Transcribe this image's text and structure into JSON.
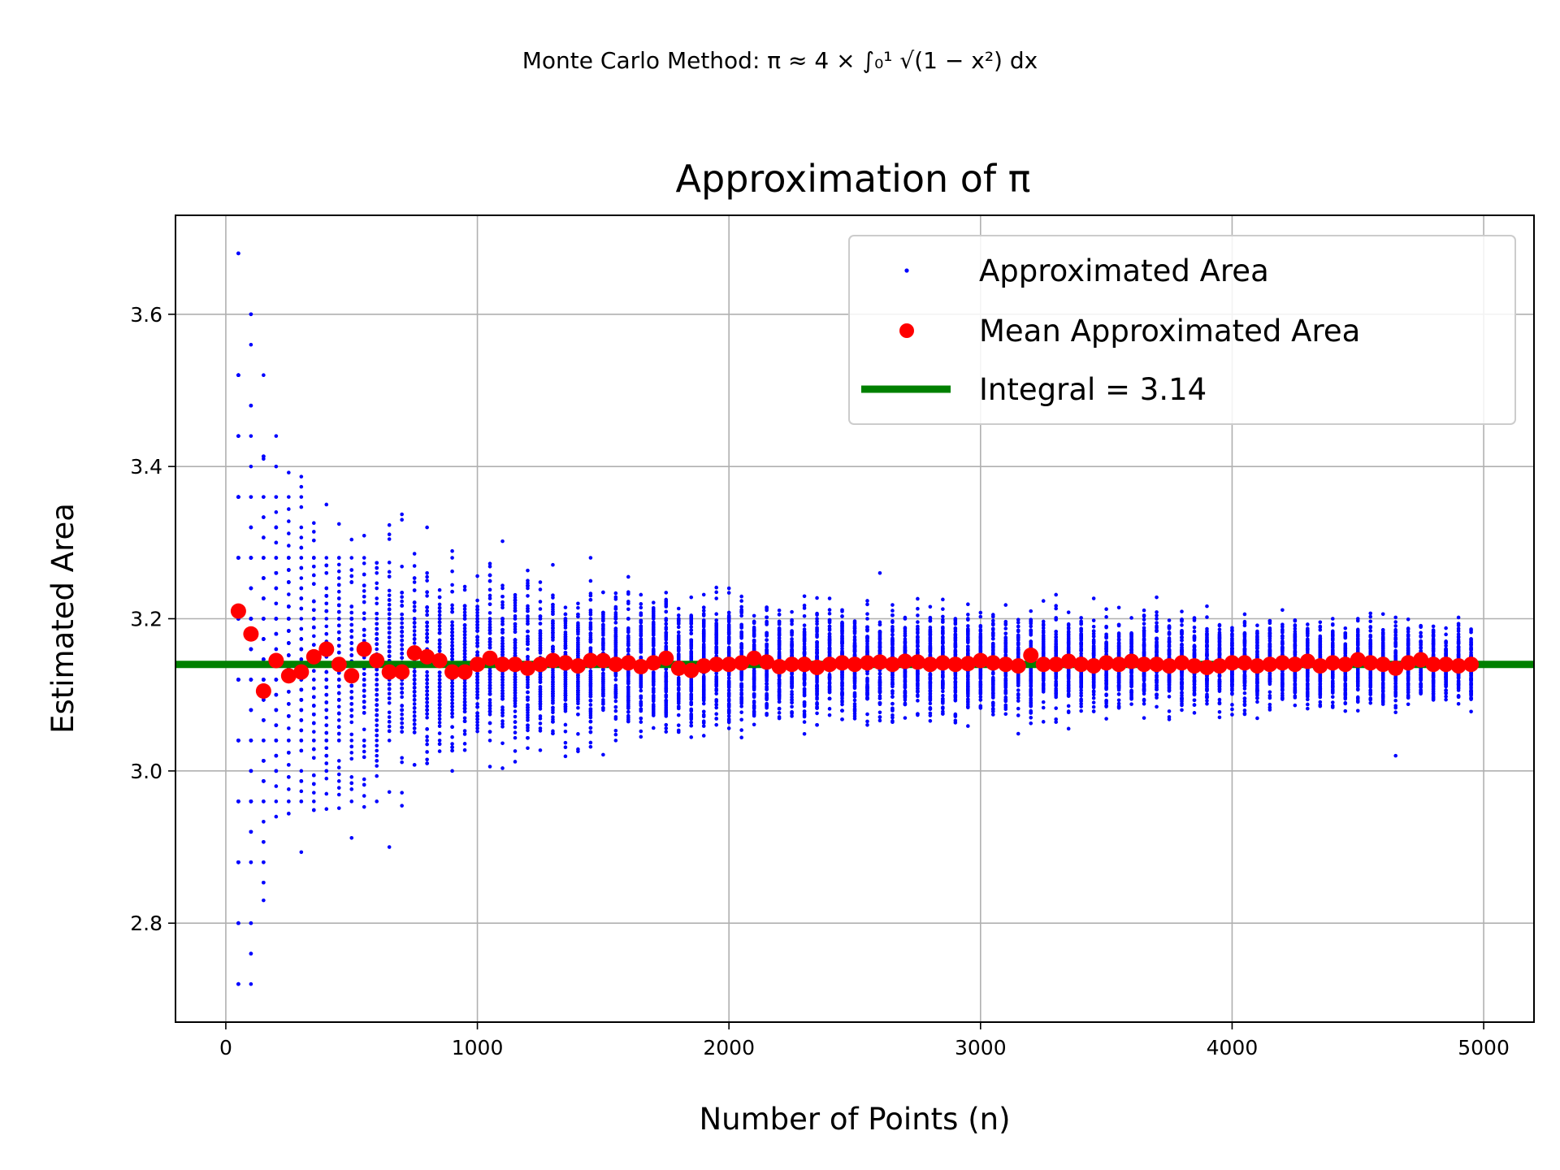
{
  "chart_data": {
    "type": "scatter",
    "suptitle": "Monte Carlo Method: π ≈ 4 × ∫₀¹ √(1 − x²) dx",
    "title": "Approximation of π",
    "xlabel": "Number of Points (n)",
    "ylabel": "Estimated Area",
    "xlim": [
      -200,
      5200
    ],
    "ylim": [
      2.67,
      3.73
    ],
    "xticks": [
      0,
      1000,
      2000,
      3000,
      4000,
      5000
    ],
    "yticks": [
      2.8,
      3.0,
      3.2,
      3.4,
      3.6
    ],
    "xtick_labels": [
      "0",
      "1000",
      "2000",
      "3000",
      "4000",
      "5000"
    ],
    "ytick_labels": [
      "2.8",
      "3.0",
      "3.2",
      "3.4",
      "3.6"
    ],
    "grid": true,
    "legend_position": "top-right",
    "sample_groups": {
      "n_values_start": 50,
      "n_values_step": 50,
      "n_values_end": 4950,
      "samples_per_n": 100,
      "note_range": "blue dots spread around the mean with spread shrinking as 1/sqrt(n)"
    },
    "series": [
      {
        "name": "Approximated Area",
        "kind": "scatter",
        "color": "#0000ff",
        "outliers": [
          {
            "x": 50,
            "y": 3.68
          },
          {
            "x": 50,
            "y": 3.52
          },
          {
            "x": 50,
            "y": 2.72
          },
          {
            "x": 100,
            "y": 3.6
          },
          {
            "x": 100,
            "y": 2.76
          },
          {
            "x": 150,
            "y": 3.41
          },
          {
            "x": 150,
            "y": 2.83
          },
          {
            "x": 650,
            "y": 2.9
          },
          {
            "x": 700,
            "y": 3.33
          },
          {
            "x": 1450,
            "y": 3.28
          },
          {
            "x": 2600,
            "y": 3.26
          },
          {
            "x": 4650,
            "y": 3.02
          }
        ]
      },
      {
        "name": "Mean Approximated Area",
        "kind": "scatter",
        "color": "#ff0000",
        "points": [
          {
            "x": 50,
            "y": 3.21
          },
          {
            "x": 100,
            "y": 3.18
          },
          {
            "x": 150,
            "y": 3.105
          },
          {
            "x": 200,
            "y": 3.145
          },
          {
            "x": 250,
            "y": 3.125
          },
          {
            "x": 300,
            "y": 3.13
          },
          {
            "x": 350,
            "y": 3.15
          },
          {
            "x": 400,
            "y": 3.16
          },
          {
            "x": 450,
            "y": 3.14
          },
          {
            "x": 500,
            "y": 3.125
          },
          {
            "x": 550,
            "y": 3.16
          },
          {
            "x": 600,
            "y": 3.145
          },
          {
            "x": 650,
            "y": 3.13
          },
          {
            "x": 700,
            "y": 3.13
          },
          {
            "x": 750,
            "y": 3.155
          },
          {
            "x": 800,
            "y": 3.15
          },
          {
            "x": 850,
            "y": 3.145
          },
          {
            "x": 900,
            "y": 3.13
          },
          {
            "x": 950,
            "y": 3.13
          },
          {
            "x": 1000,
            "y": 3.14
          },
          {
            "x": 1050,
            "y": 3.148
          },
          {
            "x": 1100,
            "y": 3.14
          },
          {
            "x": 1150,
            "y": 3.14
          },
          {
            "x": 1200,
            "y": 3.135
          },
          {
            "x": 1250,
            "y": 3.14
          },
          {
            "x": 1300,
            "y": 3.145
          },
          {
            "x": 1350,
            "y": 3.142
          },
          {
            "x": 1400,
            "y": 3.138
          },
          {
            "x": 1450,
            "y": 3.145
          },
          {
            "x": 1500,
            "y": 3.145
          },
          {
            "x": 1550,
            "y": 3.14
          },
          {
            "x": 1600,
            "y": 3.142
          },
          {
            "x": 1650,
            "y": 3.137
          },
          {
            "x": 1700,
            "y": 3.142
          },
          {
            "x": 1750,
            "y": 3.148
          },
          {
            "x": 1800,
            "y": 3.135
          },
          {
            "x": 1850,
            "y": 3.132
          },
          {
            "x": 1900,
            "y": 3.138
          },
          {
            "x": 1950,
            "y": 3.14
          },
          {
            "x": 2000,
            "y": 3.14
          },
          {
            "x": 2050,
            "y": 3.142
          },
          {
            "x": 2100,
            "y": 3.148
          },
          {
            "x": 2150,
            "y": 3.143
          },
          {
            "x": 2200,
            "y": 3.137
          },
          {
            "x": 2250,
            "y": 3.14
          },
          {
            "x": 2300,
            "y": 3.14
          },
          {
            "x": 2350,
            "y": 3.136
          },
          {
            "x": 2400,
            "y": 3.14
          },
          {
            "x": 2450,
            "y": 3.142
          },
          {
            "x": 2500,
            "y": 3.14
          },
          {
            "x": 2550,
            "y": 3.142
          },
          {
            "x": 2600,
            "y": 3.143
          },
          {
            "x": 2650,
            "y": 3.14
          },
          {
            "x": 2700,
            "y": 3.144
          },
          {
            "x": 2750,
            "y": 3.143
          },
          {
            "x": 2800,
            "y": 3.14
          },
          {
            "x": 2850,
            "y": 3.142
          },
          {
            "x": 2900,
            "y": 3.14
          },
          {
            "x": 2950,
            "y": 3.141
          },
          {
            "x": 3000,
            "y": 3.145
          },
          {
            "x": 3050,
            "y": 3.142
          },
          {
            "x": 3100,
            "y": 3.14
          },
          {
            "x": 3150,
            "y": 3.138
          },
          {
            "x": 3200,
            "y": 3.152
          },
          {
            "x": 3250,
            "y": 3.14
          },
          {
            "x": 3300,
            "y": 3.14
          },
          {
            "x": 3350,
            "y": 3.144
          },
          {
            "x": 3400,
            "y": 3.14
          },
          {
            "x": 3450,
            "y": 3.138
          },
          {
            "x": 3500,
            "y": 3.142
          },
          {
            "x": 3550,
            "y": 3.14
          },
          {
            "x": 3600,
            "y": 3.144
          },
          {
            "x": 3650,
            "y": 3.14
          },
          {
            "x": 3700,
            "y": 3.14
          },
          {
            "x": 3750,
            "y": 3.138
          },
          {
            "x": 3800,
            "y": 3.142
          },
          {
            "x": 3850,
            "y": 3.138
          },
          {
            "x": 3900,
            "y": 3.136
          },
          {
            "x": 3950,
            "y": 3.138
          },
          {
            "x": 4000,
            "y": 3.142
          },
          {
            "x": 4050,
            "y": 3.142
          },
          {
            "x": 4100,
            "y": 3.138
          },
          {
            "x": 4150,
            "y": 3.14
          },
          {
            "x": 4200,
            "y": 3.142
          },
          {
            "x": 4250,
            "y": 3.14
          },
          {
            "x": 4300,
            "y": 3.144
          },
          {
            "x": 4350,
            "y": 3.138
          },
          {
            "x": 4400,
            "y": 3.142
          },
          {
            "x": 4450,
            "y": 3.14
          },
          {
            "x": 4500,
            "y": 3.146
          },
          {
            "x": 4550,
            "y": 3.142
          },
          {
            "x": 4600,
            "y": 3.14
          },
          {
            "x": 4650,
            "y": 3.135
          },
          {
            "x": 4700,
            "y": 3.142
          },
          {
            "x": 4750,
            "y": 3.146
          },
          {
            "x": 4800,
            "y": 3.14
          },
          {
            "x": 4850,
            "y": 3.14
          },
          {
            "x": 4900,
            "y": 3.138
          },
          {
            "x": 4950,
            "y": 3.14
          }
        ]
      },
      {
        "name": "Integral = 3.14",
        "kind": "hline",
        "color": "#008000",
        "y": 3.14
      }
    ]
  }
}
